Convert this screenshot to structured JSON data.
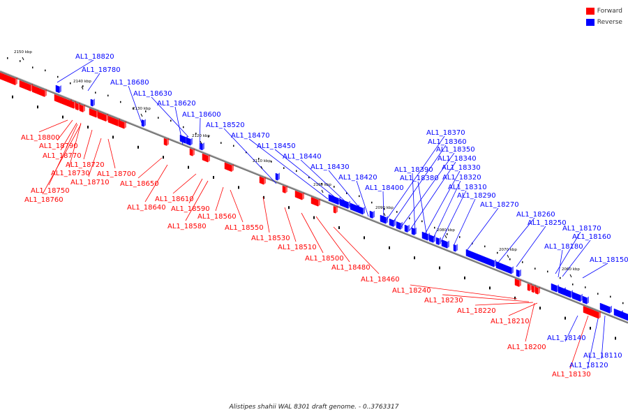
{
  "legend": [
    {
      "label": "Forward",
      "color": "#ff0000"
    },
    {
      "label": "Reverse",
      "color": "#0000ff"
    }
  ],
  "caption": "Alistipes shahii WAL 8301 draft genome. - 0..3763317",
  "colors": {
    "forward": "#ff0000",
    "reverse": "#0000ff",
    "backbone": "#888888"
  },
  "ticks": [
    "2150 kbp",
    "2140 kbp",
    "2130 kbp",
    "2120 kbp",
    "2110 kbp",
    "2100 kbp",
    "2090 kbp",
    "2080 kbp",
    "2070 kbp",
    "2060 kbp"
  ],
  "forward_genes": [
    "AL1_18800",
    "AL1_18790",
    "AL1_18770",
    "AL1_18720",
    "AL1_18730",
    "AL1_18700",
    "AL1_18710",
    "AL1_18750",
    "AL1_18760",
    "AL1_18650",
    "AL1_18640",
    "AL1_18610",
    "AL1_18590",
    "AL1_18580",
    "AL1_18560",
    "AL1_18550",
    "AL1_18530",
    "AL1_18510",
    "AL1_18500",
    "AL1_18480",
    "AL1_18460",
    "AL1_18240",
    "AL1_18230",
    "AL1_18220",
    "AL1_18210",
    "AL1_18200",
    "AL1_18130"
  ],
  "reverse_genes": [
    "AL1_18820",
    "AL1_18780",
    "AL1_18680",
    "AL1_18630",
    "AL1_18620",
    "AL1_18600",
    "AL1_18520",
    "AL1_18470",
    "AL1_18450",
    "AL1_18440",
    "AL1_18430",
    "AL1_18420",
    "AL1_18400",
    "AL1_18370",
    "AL1_18360",
    "AL1_18350",
    "AL1_18340",
    "AL1_18390",
    "AL1_18330",
    "AL1_18380",
    "AL1_18320",
    "AL1_18310",
    "AL1_18290",
    "AL1_18270",
    "AL1_18260",
    "AL1_18250",
    "AL1_18170",
    "AL1_18160",
    "AL1_18180",
    "AL1_18150",
    "AL1_18140",
    "AL1_18110",
    "AL1_18120"
  ]
}
